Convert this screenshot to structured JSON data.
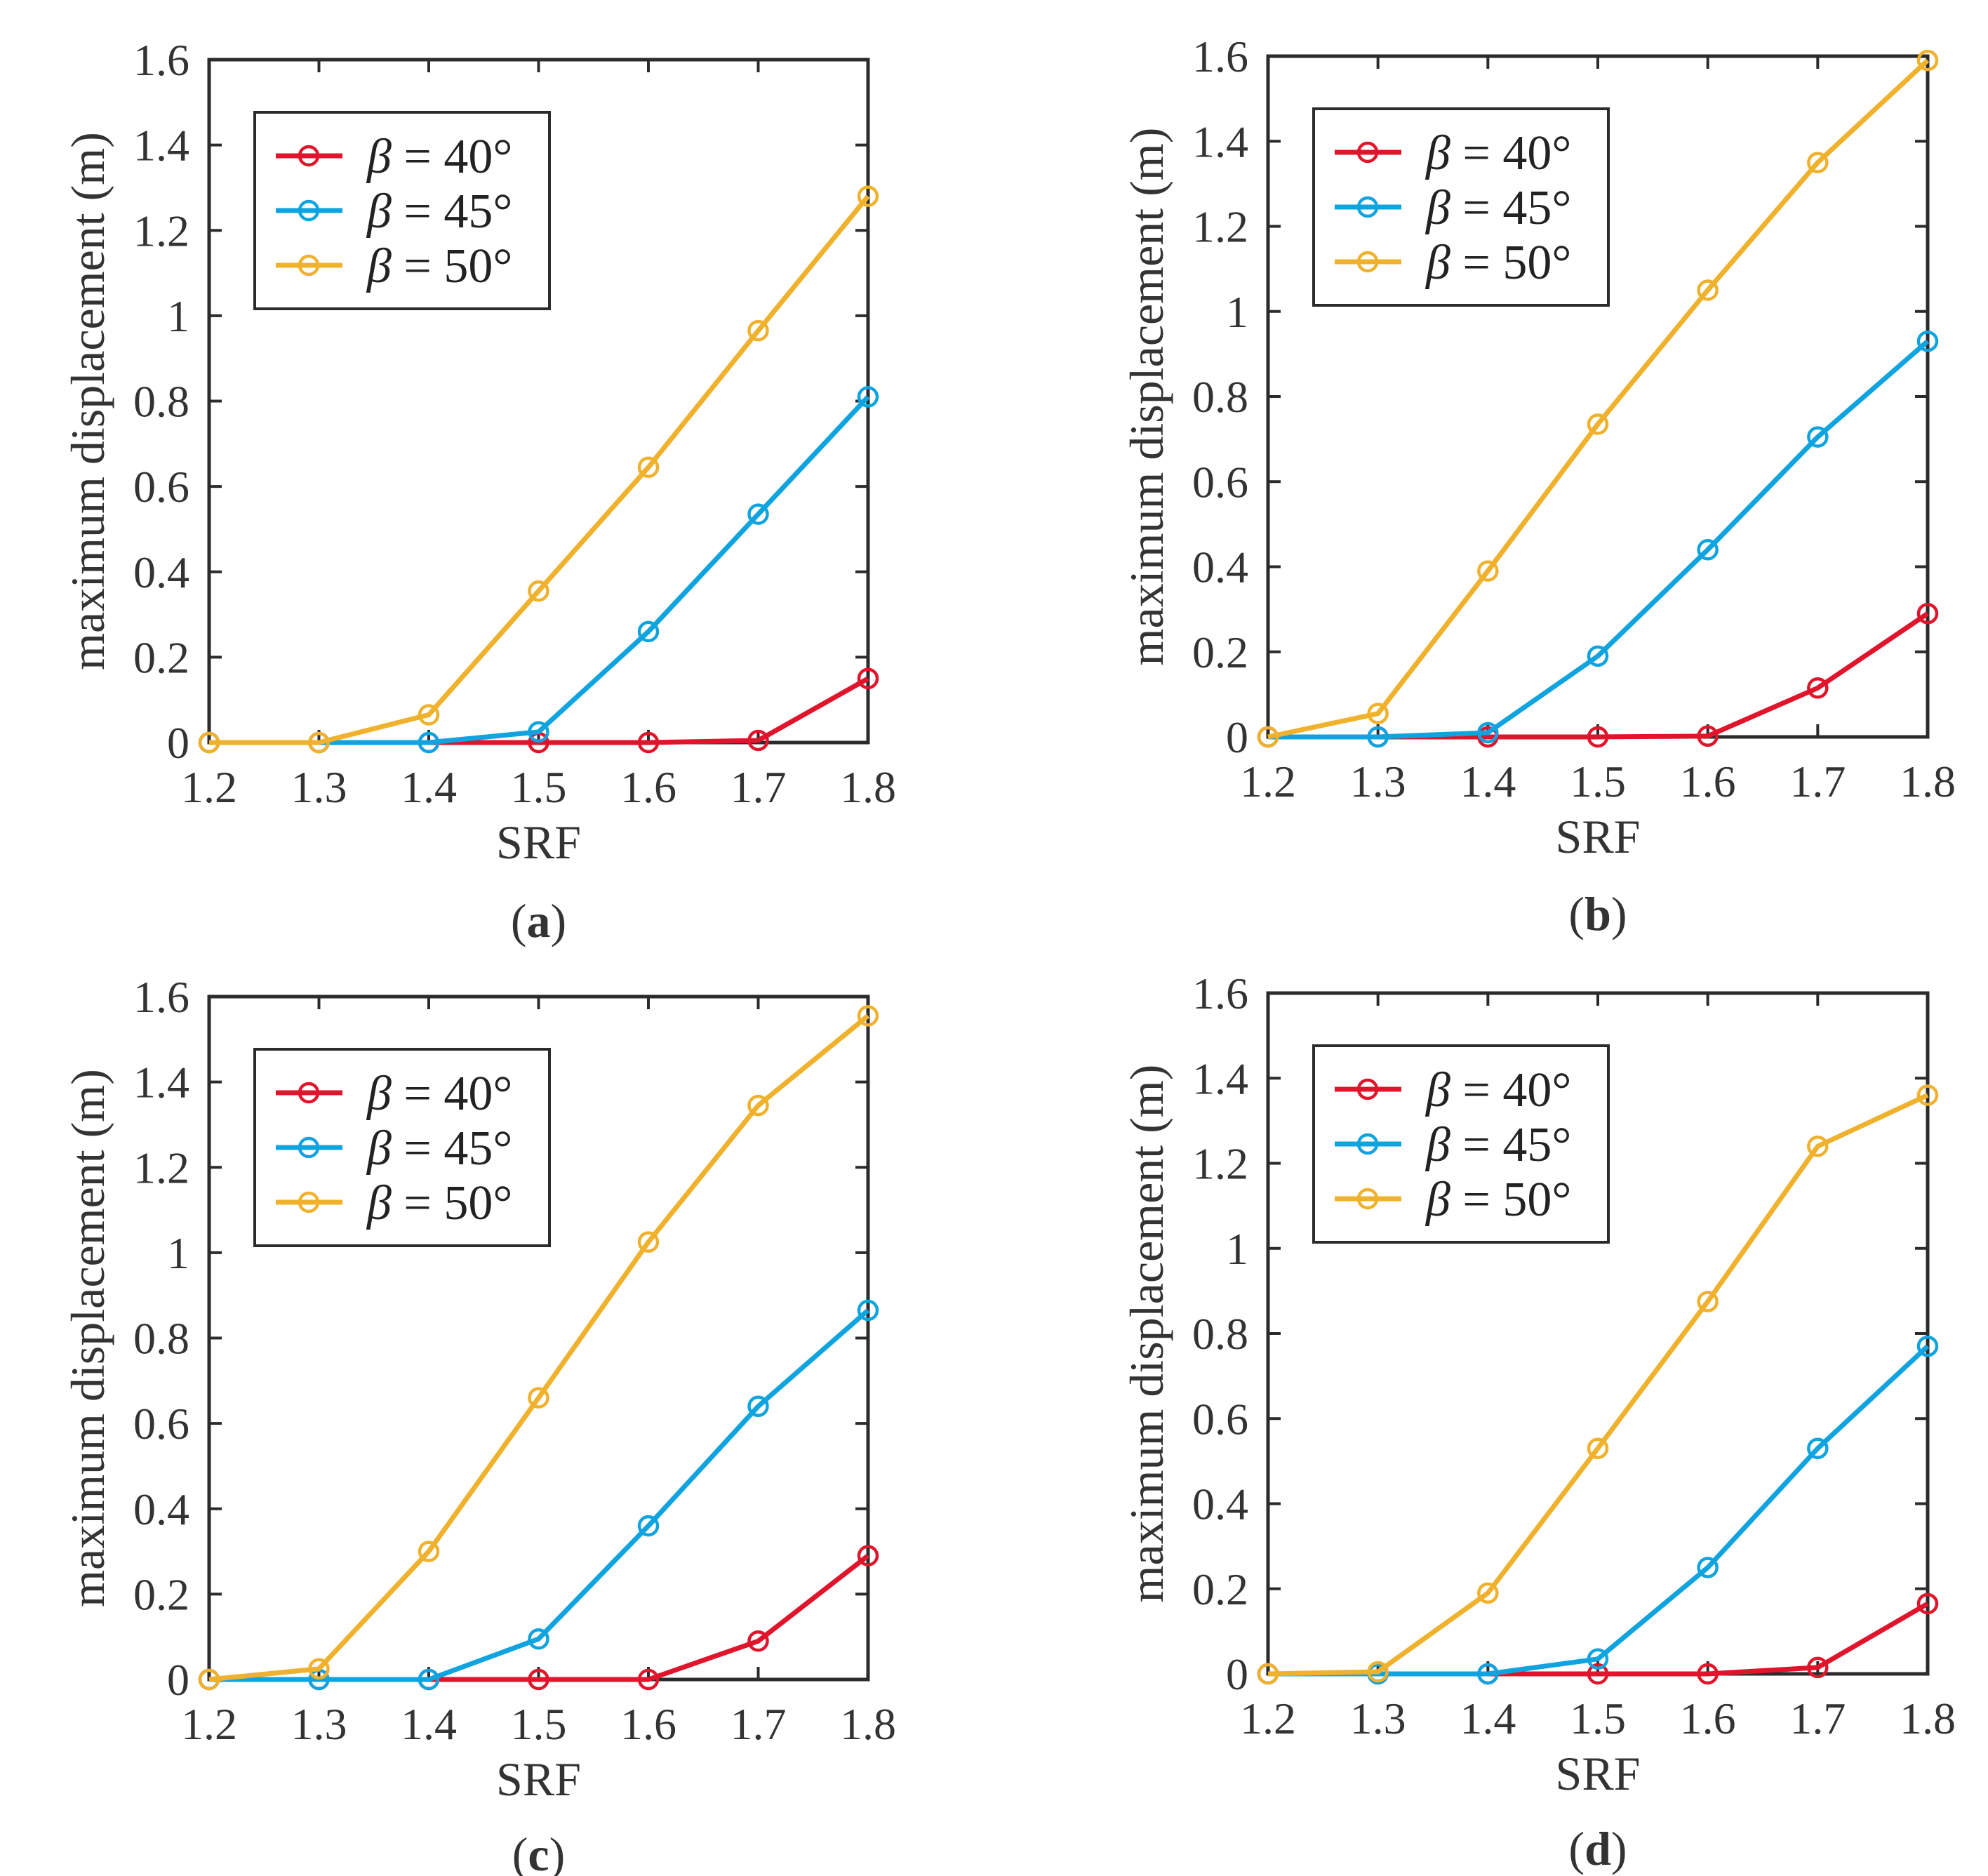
{
  "chart_data": [
    {
      "type": "line",
      "panel": "a",
      "panel_label_parts": [
        "(",
        "a",
        ")"
      ],
      "xlabel": "SRF",
      "ylabel": "maximum displacement (m)",
      "x": [
        1.2,
        1.3,
        1.4,
        1.5,
        1.6,
        1.7,
        1.8
      ],
      "xlim": [
        1.2,
        1.8
      ],
      "ylim": [
        0,
        1.6
      ],
      "xticks": [
        "1.2",
        "1.3",
        "1.4",
        "1.5",
        "1.6",
        "1.7",
        "1.8"
      ],
      "yticks": [
        "0",
        "0.2",
        "0.4",
        "0.6",
        "0.8",
        "1",
        "1.2",
        "1.4",
        "1.6"
      ],
      "legend_position": "top-left",
      "series": [
        {
          "name": "β = 40°",
          "symbol": "β",
          "eq": " = 40°",
          "color": "#e0152b",
          "values": [
            0,
            0,
            0,
            0,
            0,
            0.005,
            0.15
          ]
        },
        {
          "name": "β = 45°",
          "symbol": "β",
          "eq": " = 45°",
          "color": "#0fa4e0",
          "values": [
            0,
            0,
            0,
            0.025,
            0.26,
            0.535,
            0.81
          ]
        },
        {
          "name": "β = 50°",
          "symbol": "β",
          "eq": " = 50°",
          "color": "#f0b12c",
          "values": [
            0,
            0,
            0.065,
            0.355,
            0.645,
            0.965,
            1.28
          ]
        }
      ]
    },
    {
      "type": "line",
      "panel": "b",
      "panel_label_parts": [
        "(",
        "b",
        ")"
      ],
      "xlabel": "SRF",
      "ylabel": "maximum displacement (m)",
      "x": [
        1.2,
        1.3,
        1.4,
        1.5,
        1.6,
        1.7,
        1.8
      ],
      "xlim": [
        1.2,
        1.8
      ],
      "ylim": [
        0,
        1.6
      ],
      "xticks": [
        "1.2",
        "1.3",
        "1.4",
        "1.5",
        "1.6",
        "1.7",
        "1.8"
      ],
      "yticks": [
        "0",
        "0.2",
        "0.4",
        "0.6",
        "0.8",
        "1",
        "1.2",
        "1.4",
        "1.6"
      ],
      "legend_position": "top-left",
      "series": [
        {
          "name": "β = 40°",
          "symbol": "β",
          "eq": " = 40°",
          "color": "#e0152b",
          "values": [
            0,
            0,
            0,
            0,
            0.002,
            0.115,
            0.29
          ]
        },
        {
          "name": "β = 45°",
          "symbol": "β",
          "eq": " = 45°",
          "color": "#0fa4e0",
          "values": [
            0,
            0,
            0.01,
            0.19,
            0.44,
            0.705,
            0.93
          ]
        },
        {
          "name": "β = 50°",
          "symbol": "β",
          "eq": " = 50°",
          "color": "#f0b12c",
          "values": [
            0,
            0.055,
            0.39,
            0.735,
            1.05,
            1.35,
            1.59
          ]
        }
      ]
    },
    {
      "type": "line",
      "panel": "c",
      "panel_label_parts": [
        "(",
        "c",
        ")"
      ],
      "xlabel": "SRF",
      "ylabel": "maximum displacement (m)",
      "x": [
        1.2,
        1.3,
        1.4,
        1.5,
        1.6,
        1.7,
        1.8
      ],
      "xlim": [
        1.2,
        1.8
      ],
      "ylim": [
        0,
        1.6
      ],
      "xticks": [
        "1.2",
        "1.3",
        "1.4",
        "1.5",
        "1.6",
        "1.7",
        "1.8"
      ],
      "yticks": [
        "0",
        "0.2",
        "0.4",
        "0.6",
        "0.8",
        "1",
        "1.2",
        "1.4",
        "1.6"
      ],
      "legend_position": "top-left",
      "series": [
        {
          "name": "β = 40°",
          "symbol": "β",
          "eq": " = 40°",
          "color": "#e0152b",
          "values": [
            0,
            0,
            0,
            0,
            0,
            0.09,
            0.29
          ]
        },
        {
          "name": "β = 45°",
          "symbol": "β",
          "eq": " = 45°",
          "color": "#0fa4e0",
          "values": [
            0,
            0,
            0,
            0.095,
            0.36,
            0.64,
            0.865
          ]
        },
        {
          "name": "β = 50°",
          "symbol": "β",
          "eq": " = 50°",
          "color": "#f0b12c",
          "values": [
            0,
            0.025,
            0.3,
            0.66,
            1.025,
            1.345,
            1.555
          ]
        }
      ]
    },
    {
      "type": "line",
      "panel": "d",
      "panel_label_parts": [
        "(",
        "d",
        ")"
      ],
      "xlabel": "SRF",
      "ylabel": "maximum displacement (m)",
      "x": [
        1.2,
        1.3,
        1.4,
        1.5,
        1.6,
        1.7,
        1.8
      ],
      "xlim": [
        1.2,
        1.8
      ],
      "ylim": [
        0,
        1.6
      ],
      "xticks": [
        "1.2",
        "1.3",
        "1.4",
        "1.5",
        "1.6",
        "1.7",
        "1.8"
      ],
      "yticks": [
        "0",
        "0.2",
        "0.4",
        "0.6",
        "0.8",
        "1",
        "1.2",
        "1.4",
        "1.6"
      ],
      "legend_position": "top-left",
      "series": [
        {
          "name": "β = 40°",
          "symbol": "β",
          "eq": " = 40°",
          "color": "#e0152b",
          "values": [
            0,
            0,
            0,
            0,
            0,
            0.015,
            0.165
          ]
        },
        {
          "name": "β = 45°",
          "symbol": "β",
          "eq": " = 45°",
          "color": "#0fa4e0",
          "values": [
            0,
            0,
            0,
            0.035,
            0.25,
            0.53,
            0.77
          ]
        },
        {
          "name": "β = 50°",
          "symbol": "β",
          "eq": " = 50°",
          "color": "#f0b12c",
          "values": [
            0,
            0.005,
            0.19,
            0.53,
            0.875,
            1.24,
            1.36
          ]
        }
      ]
    }
  ]
}
